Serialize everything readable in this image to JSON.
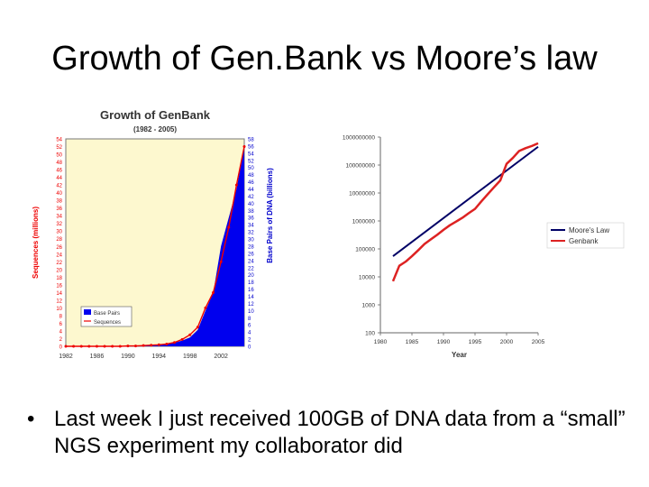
{
  "slide": {
    "title": "Growth of Gen.Bank vs Moore’s law",
    "bullet_marker": "•",
    "bullet": "Last week I just received 100GB of DNA data from a “small” NGS experiment my collaborator did"
  },
  "chart_data": [
    {
      "type": "area",
      "title": "Growth of GenBank",
      "subtitle": "(1982 - 2005)",
      "ylabel_left": "Sequences (millions)",
      "ylabel_right": "Base Pairs of DNA (billions)",
      "x_ticks": [
        "1982",
        "1986",
        "1990",
        "1994",
        "1998",
        "2002"
      ],
      "xlim": [
        1982,
        2005
      ],
      "y_left_lim": [
        0,
        54
      ],
      "y_left_ticks": [
        0,
        2,
        4,
        6,
        8,
        10,
        12,
        14,
        16,
        18,
        20,
        22,
        24,
        26,
        28,
        30,
        32,
        34,
        36,
        38,
        40,
        42,
        44,
        46,
        48,
        50,
        52,
        54
      ],
      "y_right_lim": [
        0,
        58
      ],
      "y_right_ticks": [
        0,
        2,
        4,
        6,
        8,
        10,
        12,
        14,
        16,
        18,
        20,
        22,
        24,
        26,
        28,
        30,
        32,
        34,
        36,
        38,
        40,
        42,
        44,
        46,
        48,
        50,
        52,
        54,
        56,
        58
      ],
      "legend": [
        "Base Pairs",
        "Sequences"
      ],
      "legend_position": "bottom-left",
      "x": [
        1982,
        1983,
        1984,
        1985,
        1986,
        1987,
        1988,
        1989,
        1990,
        1991,
        1992,
        1993,
        1994,
        1995,
        1996,
        1997,
        1998,
        1999,
        2000,
        2001,
        2002,
        2003,
        2004,
        2005
      ],
      "series": [
        {
          "name": "Base Pairs",
          "axis": "right",
          "color": "#0000ee",
          "values": [
            0,
            0,
            0,
            0,
            0,
            0,
            0,
            0.1,
            0.1,
            0.1,
            0.2,
            0.3,
            0.4,
            0.6,
            1.0,
            1.6,
            2.5,
            4.6,
            10.0,
            15.0,
            28.0,
            36.0,
            44.0,
            56.0
          ]
        },
        {
          "name": "Sequences",
          "axis": "left",
          "color": "#ee0000",
          "values": [
            0,
            0,
            0,
            0,
            0,
            0,
            0,
            0,
            0.1,
            0.1,
            0.2,
            0.3,
            0.4,
            0.6,
            1.0,
            1.8,
            3.0,
            5.0,
            10.0,
            14.0,
            22.0,
            31.0,
            42.0,
            52.0
          ]
        }
      ],
      "plot_bg": "#fdf8cf"
    },
    {
      "type": "line",
      "xlabel": "Year",
      "x_ticks": [
        "1980",
        "1985",
        "1990",
        "1995",
        "2000",
        "2005"
      ],
      "xlim": [
        1980,
        2005
      ],
      "yscale": "log",
      "ylim": [
        100,
        1000000000
      ],
      "y_ticks": [
        "100",
        "1000",
        "10000",
        "100000",
        "1000000",
        "10000000",
        "100000000",
        "1000000000"
      ],
      "legend": [
        "Moore's Law",
        "Genbank"
      ],
      "legend_position": "right",
      "series": [
        {
          "name": "Moore's Law",
          "color": "#000066",
          "x": [
            1982,
            2005
          ],
          "y": [
            55000,
            450000000
          ]
        },
        {
          "name": "Genbank",
          "color": "#dd2222",
          "x": [
            1982,
            1983,
            1984,
            1985,
            1986,
            1987,
            1988,
            1989,
            1990,
            1991,
            1992,
            1993,
            1994,
            1995,
            1996,
            1997,
            1998,
            1999,
            2000,
            2001,
            2002,
            2003,
            2004,
            2005
          ],
          "y": [
            7000,
            25000,
            35000,
            55000,
            90000,
            150000,
            220000,
            320000,
            480000,
            700000,
            950000,
            1300000,
            1900000,
            2700000,
            5000000,
            9000000,
            16000000,
            28000000,
            110000000,
            180000000,
            320000000,
            400000000,
            480000000,
            600000000
          ]
        }
      ]
    }
  ]
}
